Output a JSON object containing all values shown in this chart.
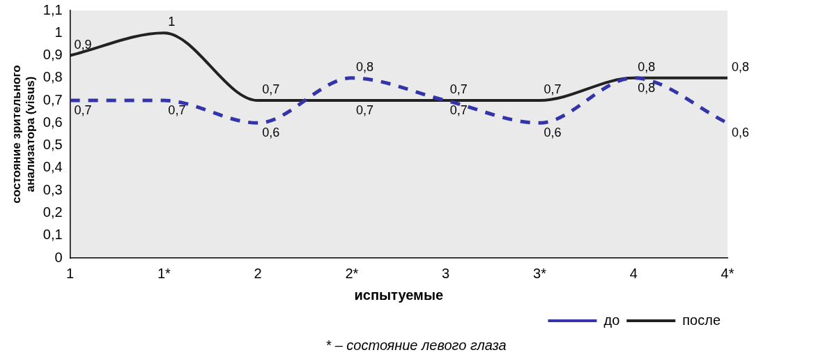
{
  "chart_data": {
    "type": "line",
    "xlabel": "испытуемые",
    "ylabel": "состояние зрительного анализатора (visus)",
    "categories": [
      "1",
      "1*",
      "2",
      "2*",
      "3",
      "3*",
      "4",
      "4*"
    ],
    "series": [
      {
        "name": "до",
        "color": "#3333aa",
        "line_style": "dashed",
        "values": [
          0.7,
          0.7,
          0.6,
          0.8,
          0.7,
          0.6,
          0.8,
          0.6
        ],
        "value_labels": [
          "0,7",
          "0,7",
          "0,6",
          "0,8",
          "0,7",
          "0,6",
          "0,8",
          "0,6"
        ]
      },
      {
        "name": "после",
        "color": "#222222",
        "line_style": "solid",
        "values": [
          0.9,
          1,
          0.7,
          0.7,
          0.7,
          0.7,
          0.8,
          0.8
        ],
        "value_labels": [
          "0,9",
          "1",
          "0,7",
          "0,7",
          "0,7",
          "0,7",
          "0,8",
          "0,8"
        ]
      }
    ],
    "ylim": [
      0,
      1.1
    ],
    "yticks": [
      0,
      {
        "value": 0.1,
        "label": "0,1"
      },
      {
        "value": 0.2,
        "label": "0,2"
      },
      {
        "value": 0.3,
        "label": "0,3"
      },
      {
        "value": 0.4,
        "label": "0,4"
      },
      {
        "value": 0.5,
        "label": "0,5"
      },
      {
        "value": 0.6,
        "label": "0,6"
      },
      {
        "value": 0.7,
        "label": "0,7"
      },
      {
        "value": 0.8,
        "label": "0,8"
      },
      {
        "value": 0.9,
        "label": "0,9"
      },
      1,
      {
        "value": 1.1,
        "label": "1,1"
      }
    ],
    "grid": false,
    "legend": "bottom right",
    "marker": "none",
    "annotations": [
      "* – состояние левого глаза"
    ]
  }
}
